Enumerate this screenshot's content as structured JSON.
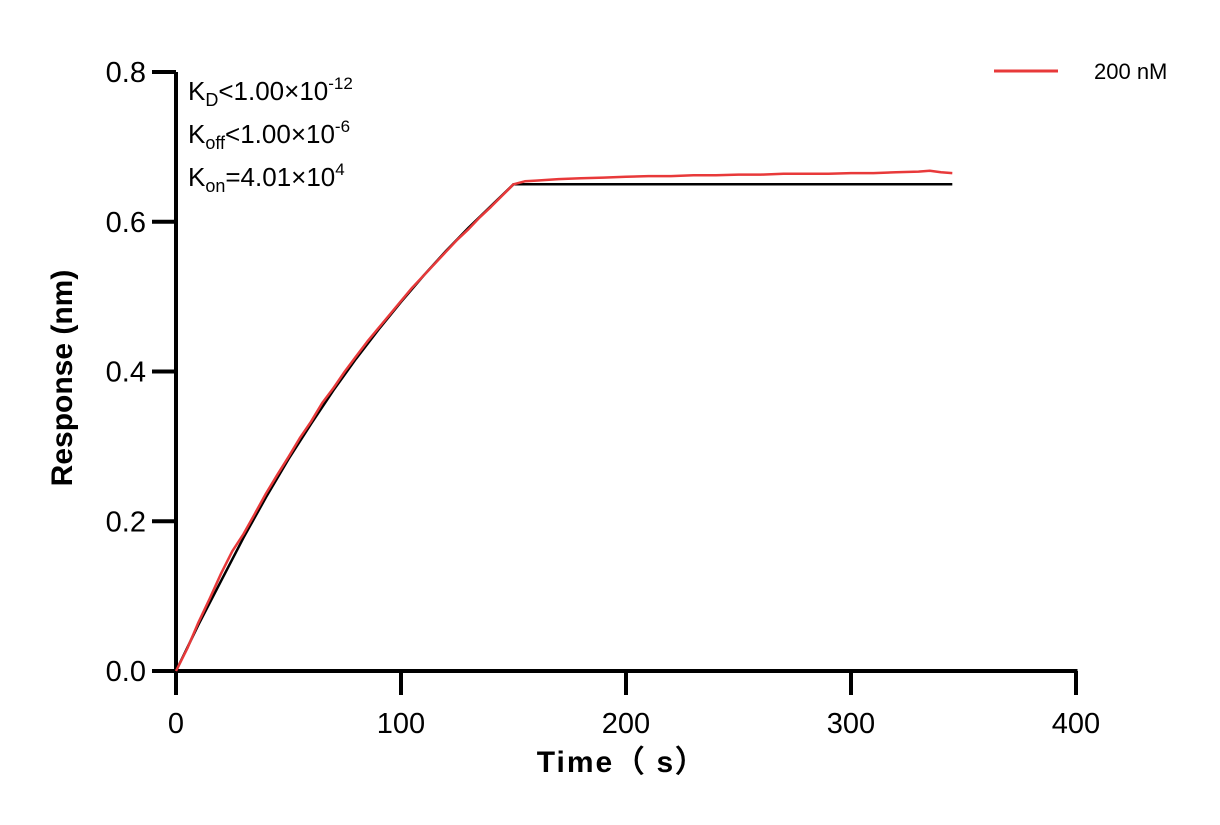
{
  "chart_data": {
    "type": "line",
    "xlabel": "Time（ s）",
    "ylabel": "Response (nm)",
    "xlim": [
      0,
      400
    ],
    "ylim": [
      0,
      0.8
    ],
    "x_ticks": [
      "0",
      "100",
      "200",
      "300",
      "400"
    ],
    "y_ticks": [
      "0.0",
      "0.2",
      "0.4",
      "0.6",
      "0.8"
    ],
    "grid": false,
    "legend_position": "top-right",
    "annotations": {
      "kd": {
        "base": "K",
        "sub": "D",
        "rel": "<1.00×10",
        "exp": "-12"
      },
      "koff": {
        "base": "K",
        "sub": "off",
        "rel": "<1.00×10",
        "exp": "-6"
      },
      "kon": {
        "base": "K",
        "sub": "on",
        "rel": "=4.01×10",
        "exp": "4"
      }
    },
    "series": [
      {
        "name": "200 nM",
        "color": "#e8393a",
        "x": [
          0,
          5,
          10,
          15,
          20,
          25,
          30,
          35,
          40,
          45,
          50,
          55,
          60,
          65,
          70,
          75,
          80,
          85,
          90,
          95,
          100,
          105,
          110,
          115,
          120,
          125,
          130,
          135,
          140,
          145,
          150,
          155,
          160,
          170,
          180,
          190,
          200,
          210,
          220,
          230,
          240,
          250,
          260,
          270,
          280,
          290,
          300,
          310,
          320,
          330,
          335,
          340,
          345
        ],
        "y": [
          0.0,
          0.03,
          0.065,
          0.097,
          0.13,
          0.16,
          0.183,
          0.21,
          0.237,
          0.262,
          0.286,
          0.311,
          0.333,
          0.358,
          0.378,
          0.4,
          0.42,
          0.44,
          0.458,
          0.476,
          0.494,
          0.512,
          0.528,
          0.544,
          0.56,
          0.576,
          0.59,
          0.606,
          0.62,
          0.635,
          0.65,
          0.654,
          0.655,
          0.657,
          0.658,
          0.659,
          0.66,
          0.661,
          0.661,
          0.662,
          0.662,
          0.663,
          0.663,
          0.664,
          0.664,
          0.664,
          0.665,
          0.665,
          0.666,
          0.667,
          0.668,
          0.666,
          0.665
        ]
      }
    ],
    "fit": {
      "color": "#000000",
      "x": [
        0,
        10,
        20,
        30,
        40,
        50,
        60,
        70,
        80,
        90,
        100,
        110,
        120,
        130,
        140,
        150,
        160,
        200,
        250,
        300,
        345
      ],
      "y": [
        0.0,
        0.062,
        0.12,
        0.178,
        0.232,
        0.283,
        0.33,
        0.375,
        0.417,
        0.456,
        0.493,
        0.528,
        0.561,
        0.592,
        0.621,
        0.65,
        0.65,
        0.65,
        0.65,
        0.65,
        0.65
      ]
    }
  }
}
